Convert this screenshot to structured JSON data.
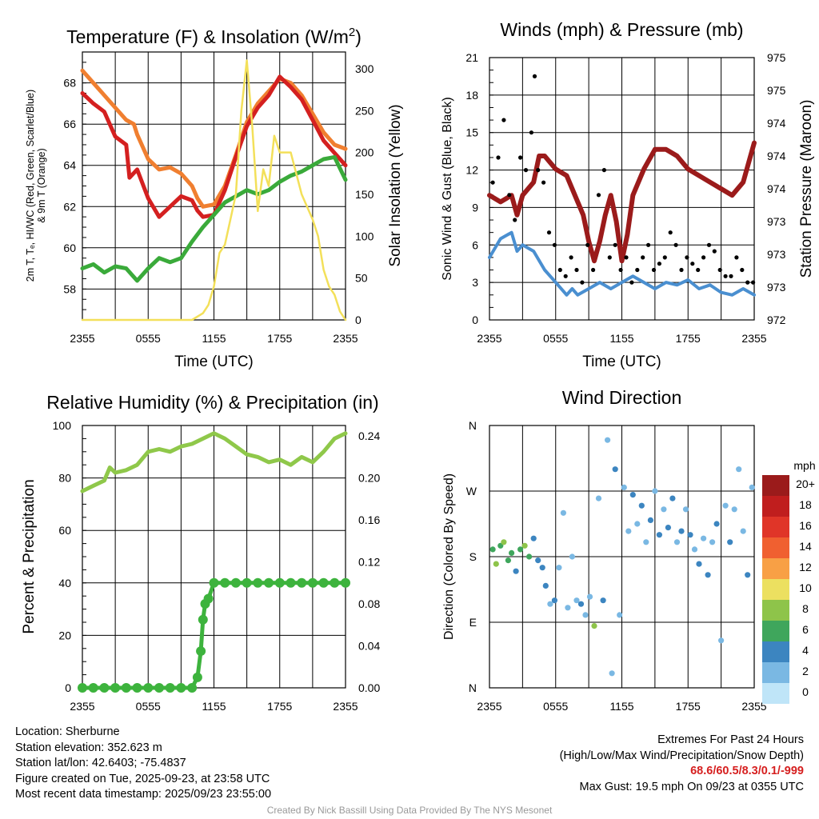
{
  "chart_data": [
    {
      "id": "temperature",
      "type": "line",
      "title": "Temperature (F) & Insolation (W/m",
      "title_superscript": "2",
      "title_close": ")",
      "xlabel": "Time (UTC)",
      "ylabel_lines": [
        "2m T, Tₑ, HI/WC (Red, Green, Scarlet/Blue)",
        "& 9m T (Orange)"
      ],
      "ylabel_right": "Solar Insolation (Yellow)",
      "x_ticks": [
        "2355",
        "0555",
        "1155",
        "1755",
        "2355"
      ],
      "ylim": [
        56.5,
        69.5
      ],
      "y_ticks": [
        58,
        60,
        62,
        64,
        66,
        68
      ],
      "y2lim": [
        0,
        320
      ],
      "y2_ticks": [
        0,
        50,
        100,
        150,
        200,
        250,
        300
      ],
      "series": [
        {
          "name": "9m T",
          "color": "#f07f30",
          "x": [
            0,
            1,
            2,
            3,
            4,
            4.7,
            5,
            6,
            7,
            8,
            9,
            10,
            10.5,
            11,
            12,
            13,
            14,
            15,
            16,
            17,
            18,
            19,
            20,
            21,
            22,
            23,
            24
          ],
          "values": [
            68.6,
            68,
            67.4,
            66.8,
            66.2,
            66,
            65.5,
            64.3,
            63.8,
            63.9,
            63.6,
            63,
            62.4,
            62,
            62.1,
            63,
            64.5,
            66.1,
            67,
            67.6,
            68.2,
            68,
            67.4,
            66.5,
            65.6,
            65,
            64.8
          ]
        },
        {
          "name": "2m T",
          "color": "#d42020",
          "x": [
            0,
            1,
            2,
            3,
            4,
            4.3,
            5,
            6,
            7,
            8,
            9,
            10,
            10.5,
            11,
            12,
            13,
            14,
            15,
            16,
            17,
            18,
            19,
            20,
            21,
            22,
            23,
            24
          ],
          "values": [
            67.5,
            67,
            66.6,
            65.4,
            65,
            63.4,
            63.8,
            62.4,
            61.5,
            62,
            62.5,
            62.3,
            61.8,
            61.5,
            61.6,
            62.8,
            64.4,
            65.9,
            66.8,
            67.4,
            68.3,
            67.8,
            67.2,
            66.2,
            65.2,
            64.6,
            64
          ]
        },
        {
          "name": "Td",
          "color": "#3aaa3a",
          "x": [
            0,
            1,
            2,
            3,
            4,
            5,
            6,
            7,
            8,
            9,
            10,
            11,
            12,
            13,
            14,
            15,
            16,
            17,
            18,
            19,
            20,
            21,
            22,
            23,
            24
          ],
          "values": [
            59,
            59.2,
            58.8,
            59.1,
            59,
            58.4,
            59,
            59.5,
            59.3,
            59.5,
            60.3,
            61,
            61.6,
            62.2,
            62.5,
            62.8,
            62.6,
            62.8,
            63.2,
            63.5,
            63.7,
            64,
            64.3,
            64.4,
            63.3
          ]
        },
        {
          "name": "Solar",
          "axis": "right",
          "color": "#f3e05a",
          "x": [
            0,
            9,
            10,
            11,
            11.5,
            12,
            12.5,
            13,
            13.5,
            14,
            14.5,
            15,
            15.5,
            16,
            16.5,
            17,
            17.5,
            18,
            19,
            20,
            21,
            21.5,
            22,
            22.5,
            23,
            23.5,
            24
          ],
          "values": [
            0,
            0,
            0,
            8,
            18,
            40,
            80,
            90,
            120,
            150,
            250,
            310,
            230,
            130,
            180,
            160,
            220,
            200,
            200,
            150,
            120,
            100,
            60,
            40,
            30,
            10,
            0
          ]
        }
      ]
    },
    {
      "id": "winds",
      "type": "scatter",
      "title": "Winds (mph) & Pressure (mb)",
      "xlabel": "Time (UTC)",
      "ylabel": "Sonic Wind & Gust (Blue, Black)",
      "ylabel_right": "Station Pressure (Maroon)",
      "x_ticks": [
        "2355",
        "0555",
        "1155",
        "1755",
        "2355"
      ],
      "ylim": [
        0,
        21
      ],
      "y_ticks": [
        0,
        3,
        6,
        9,
        12,
        15,
        18,
        21
      ],
      "y2lim": [
        972,
        976
      ],
      "y2_tick_labels": [
        "972",
        "973",
        "973",
        "973",
        "974",
        "974",
        "974",
        "975",
        "975"
      ],
      "series": [
        {
          "name": "Pressure",
          "axis": "right",
          "color": "#9b1b1b",
          "x": [
            0,
            1,
            2,
            2.5,
            3,
            4,
            4.5,
            5,
            6,
            7,
            8,
            8.5,
            9,
            9.5,
            10,
            10.5,
            11,
            11.5,
            12,
            12.5,
            13,
            14,
            15,
            16,
            17,
            18,
            19,
            20,
            21,
            22,
            23,
            23.5,
            24
          ],
          "values": [
            973.9,
            973.8,
            973.9,
            973.6,
            973.9,
            974.1,
            974.5,
            974.5,
            974.3,
            974.2,
            973.8,
            973.6,
            973.2,
            972.9,
            973.2,
            973.6,
            973.9,
            973.5,
            972.9,
            973.3,
            973.9,
            974.3,
            974.6,
            974.6,
            974.5,
            974.3,
            974.2,
            974.1,
            974,
            973.9,
            974.1,
            974.4,
            974.7
          ]
        },
        {
          "name": "Sonic Wind",
          "color": "#4a8fd0",
          "x": [
            0,
            1,
            2,
            2.5,
            3,
            4,
            5,
            6,
            7,
            7.5,
            8,
            9,
            10,
            11,
            12,
            13,
            14,
            15,
            16,
            17,
            18,
            19,
            20,
            21,
            22,
            23,
            24
          ],
          "values": [
            5,
            6.5,
            7,
            5.5,
            6,
            5.5,
            4,
            3,
            2,
            2.5,
            2,
            2.5,
            3,
            2.5,
            3,
            3.5,
            3,
            2.5,
            3,
            2.8,
            3.2,
            2.5,
            2.8,
            2.2,
            2,
            2.5,
            2
          ]
        },
        {
          "name": "Gust",
          "color": "#000000",
          "x": [
            0.3,
            0.8,
            1.3,
            1.8,
            2.3,
            2.8,
            3.3,
            3.8,
            4.1,
            4.4,
            4.9,
            5.4,
            5.9,
            6.4,
            6.9,
            7.4,
            7.9,
            8.4,
            8.9,
            9.4,
            9.9,
            10.4,
            10.9,
            11.4,
            11.9,
            12.4,
            12.9,
            13.4,
            13.9,
            14.4,
            14.9,
            15.4,
            15.9,
            16.4,
            16.9,
            17.4,
            17.9,
            18.4,
            18.9,
            19.4,
            19.9,
            20.4,
            20.9,
            21.4,
            21.9,
            22.4,
            22.9,
            23.4,
            23.9
          ],
          "values": [
            11,
            13,
            16,
            10,
            8,
            13,
            12,
            15,
            19.5,
            12,
            11,
            7,
            6,
            4,
            3.5,
            5,
            4,
            3,
            6,
            4,
            10,
            12,
            5,
            6,
            4,
            5,
            3,
            4,
            5,
            6,
            4,
            4.5,
            5,
            7,
            6,
            4,
            5,
            4.5,
            4,
            5,
            6,
            5.5,
            4,
            3.5,
            3.5,
            5,
            4,
            3,
            3
          ]
        }
      ]
    },
    {
      "id": "humidity",
      "type": "line",
      "title": "Relative Humidity (%) & Precipitation (in)",
      "ylabel": "Percent & Precipitation",
      "x_ticks": [
        "2355",
        "0555",
        "1155",
        "1755",
        "2355"
      ],
      "ylim": [
        0,
        100
      ],
      "y_ticks": [
        0,
        20,
        40,
        60,
        80,
        100
      ],
      "y2lim": [
        0,
        0.25
      ],
      "y2_tick_labels": [
        "0.00",
        "0.04",
        "0.08",
        "0.12",
        "0.16",
        "0.20",
        "0.24"
      ],
      "series": [
        {
          "name": "RH",
          "color": "#8fc84a",
          "x": [
            0,
            1,
            2,
            2.5,
            3,
            4,
            5,
            6,
            7,
            8,
            9,
            10,
            11,
            12,
            13,
            14,
            15,
            16,
            17,
            18,
            19,
            20,
            21,
            22,
            23,
            24
          ],
          "values": [
            75,
            77,
            79,
            84,
            82,
            83,
            85,
            90,
            91,
            90,
            92,
            93,
            95,
            97,
            95,
            92,
            89,
            88,
            86,
            87,
            85,
            88,
            86,
            90,
            95,
            97
          ]
        },
        {
          "name": "Precip",
          "axis": "right",
          "color": "#3db33d",
          "x": [
            0,
            1,
            2,
            3,
            4,
            5,
            6,
            7,
            8,
            9,
            10,
            10.5,
            10.8,
            11,
            11.2,
            11.5,
            12,
            13,
            14,
            15,
            16,
            17,
            18,
            19,
            20,
            21,
            22,
            23,
            24
          ],
          "values": [
            0,
            0,
            0,
            0,
            0,
            0,
            0,
            0,
            0,
            0,
            0,
            0.01,
            0.035,
            0.065,
            0.08,
            0.085,
            0.1,
            0.1,
            0.1,
            0.1,
            0.1,
            0.1,
            0.1,
            0.1,
            0.1,
            0.1,
            0.1,
            0.1,
            0.1
          ]
        }
      ]
    },
    {
      "id": "direction",
      "type": "scatter",
      "title": "Wind Direction",
      "ylabel": "Direction (Colored By Speed)",
      "x_ticks": [
        "2355",
        "0555",
        "1155",
        "1755",
        "2355"
      ],
      "y_labels": [
        "N",
        "E",
        "S",
        "W",
        "N"
      ],
      "ylim": [
        0,
        360
      ],
      "colorbar_title": "mph",
      "colorbar_labels": [
        "20+",
        "18",
        "16",
        "14",
        "12",
        "10",
        "8",
        "6",
        "4",
        "2",
        "0"
      ],
      "colorbar_colors": [
        "#9b1b1b",
        "#c01e1e",
        "#e03528",
        "#f06030",
        "#f8a045",
        "#ece060",
        "#8ec44a",
        "#3fa65c",
        "#3c85c0",
        "#7ab8e3",
        "#bfe5f8"
      ],
      "points": [
        {
          "t": 0.3,
          "dir": 190,
          "spd": 5
        },
        {
          "t": 0.6,
          "dir": 170,
          "spd": 7
        },
        {
          "t": 1.0,
          "dir": 195,
          "spd": 6
        },
        {
          "t": 1.3,
          "dir": 200,
          "spd": 7
        },
        {
          "t": 1.7,
          "dir": 175,
          "spd": 5
        },
        {
          "t": 2.0,
          "dir": 185,
          "spd": 6
        },
        {
          "t": 2.4,
          "dir": 160,
          "spd": 4
        },
        {
          "t": 2.8,
          "dir": 190,
          "spd": 5
        },
        {
          "t": 3.2,
          "dir": 195,
          "spd": 7
        },
        {
          "t": 3.6,
          "dir": 180,
          "spd": 6
        },
        {
          "t": 4.0,
          "dir": 205,
          "spd": 3
        },
        {
          "t": 4.4,
          "dir": 175,
          "spd": 4
        },
        {
          "t": 4.8,
          "dir": 165,
          "spd": 3
        },
        {
          "t": 5.1,
          "dir": 140,
          "spd": 3
        },
        {
          "t": 5.5,
          "dir": 115,
          "spd": 2
        },
        {
          "t": 5.9,
          "dir": 120,
          "spd": 3
        },
        {
          "t": 6.3,
          "dir": 165,
          "spd": 2
        },
        {
          "t": 6.7,
          "dir": 240,
          "spd": 1
        },
        {
          "t": 7.1,
          "dir": 110,
          "spd": 2
        },
        {
          "t": 7.5,
          "dir": 180,
          "spd": 1
        },
        {
          "t": 7.9,
          "dir": 120,
          "spd": 2
        },
        {
          "t": 8.3,
          "dir": 115,
          "spd": 3
        },
        {
          "t": 8.7,
          "dir": 100,
          "spd": 2
        },
        {
          "t": 9.1,
          "dir": 125,
          "spd": 1
        },
        {
          "t": 9.5,
          "dir": 85,
          "spd": 8
        },
        {
          "t": 9.9,
          "dir": 260,
          "spd": 2
        },
        {
          "t": 10.3,
          "dir": 120,
          "spd": 4
        },
        {
          "t": 10.7,
          "dir": 340,
          "spd": 1
        },
        {
          "t": 11.1,
          "dir": 20,
          "spd": 1
        },
        {
          "t": 11.4,
          "dir": 300,
          "spd": 3
        },
        {
          "t": 11.8,
          "dir": 100,
          "spd": 2
        },
        {
          "t": 12.2,
          "dir": 275,
          "spd": 2
        },
        {
          "t": 12.6,
          "dir": 215,
          "spd": 2
        },
        {
          "t": 13.0,
          "dir": 265,
          "spd": 3
        },
        {
          "t": 13.4,
          "dir": 225,
          "spd": 2
        },
        {
          "t": 13.8,
          "dir": 250,
          "spd": 3
        },
        {
          "t": 14.2,
          "dir": 200,
          "spd": 2
        },
        {
          "t": 14.6,
          "dir": 230,
          "spd": 3
        },
        {
          "t": 15.0,
          "dir": 270,
          "spd": 2
        },
        {
          "t": 15.4,
          "dir": 210,
          "spd": 3
        },
        {
          "t": 15.8,
          "dir": 245,
          "spd": 2
        },
        {
          "t": 16.2,
          "dir": 220,
          "spd": 3
        },
        {
          "t": 16.6,
          "dir": 260,
          "spd": 4
        },
        {
          "t": 17.0,
          "dir": 200,
          "spd": 2
        },
        {
          "t": 17.4,
          "dir": 215,
          "spd": 3
        },
        {
          "t": 17.8,
          "dir": 245,
          "spd": 2
        },
        {
          "t": 18.2,
          "dir": 210,
          "spd": 3
        },
        {
          "t": 18.6,
          "dir": 190,
          "spd": 2
        },
        {
          "t": 19.0,
          "dir": 170,
          "spd": 4
        },
        {
          "t": 19.4,
          "dir": 205,
          "spd": 2
        },
        {
          "t": 19.8,
          "dir": 155,
          "spd": 3
        },
        {
          "t": 20.2,
          "dir": 200,
          "spd": 2
        },
        {
          "t": 20.6,
          "dir": 225,
          "spd": 3
        },
        {
          "t": 21.0,
          "dir": 65,
          "spd": 1
        },
        {
          "t": 21.4,
          "dir": 250,
          "spd": 2
        },
        {
          "t": 21.8,
          "dir": 200,
          "spd": 3
        },
        {
          "t": 22.2,
          "dir": 245,
          "spd": 2
        },
        {
          "t": 22.6,
          "dir": 300,
          "spd": 1
        },
        {
          "t": 23.0,
          "dir": 215,
          "spd": 2
        },
        {
          "t": 23.4,
          "dir": 155,
          "spd": 3
        },
        {
          "t": 23.8,
          "dir": 275,
          "spd": 2
        }
      ]
    }
  ],
  "info": {
    "location": "Location: Sherburne",
    "elevation": "Station elevation: 352.623 m",
    "latlon": "Station lat/lon: 42.6403; -75.4837",
    "created": "Figure created on Tue, 2025-09-23, at 23:58 UTC",
    "recent": "Most recent data timestamp: 2025/09/23 23:55:00"
  },
  "extremes": {
    "title": "Extremes For Past 24 Hours",
    "subtitle": "(High/Low/Max Wind/Precipitation/Snow Depth)",
    "values": "68.6/60.5/8.3/0.1/-999",
    "max_gust": "Max Gust: 19.5 mph On 09/23 at 0355 UTC"
  },
  "credit": "Created By Nick Bassill Using Data Provided By The NYS Mesonet"
}
